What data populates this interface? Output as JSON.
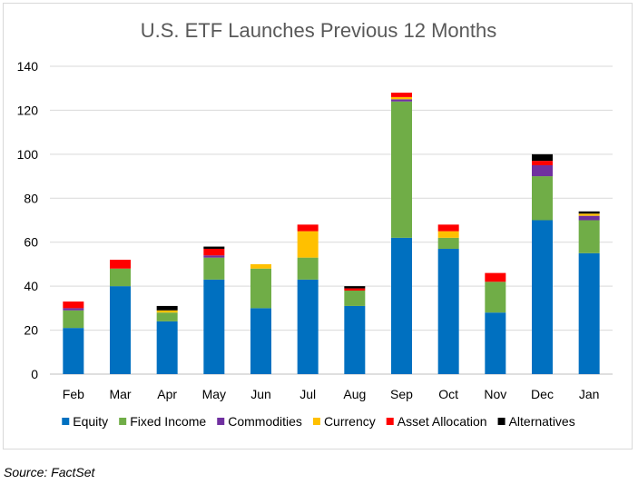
{
  "chart_data": {
    "type": "bar",
    "stacked": true,
    "title": "U.S. ETF Launches Previous 12 Months",
    "xlabel": "",
    "ylabel": "",
    "ylim": [
      0,
      140
    ],
    "yticks": [
      0,
      20,
      40,
      60,
      80,
      100,
      120,
      140
    ],
    "grid": true,
    "legend_position": "bottom",
    "categories": [
      "Feb",
      "Mar",
      "Apr",
      "May",
      "Jun",
      "Jul",
      "Aug",
      "Sep",
      "Oct",
      "Nov",
      "Dec",
      "Jan"
    ],
    "series": [
      {
        "name": "Equity",
        "color": "#0070C0",
        "values": [
          21,
          40,
          24,
          43,
          30,
          43,
          31,
          62,
          57,
          28,
          70,
          55
        ]
      },
      {
        "name": "Fixed Income",
        "color": "#70AD47",
        "values": [
          8,
          8,
          4,
          10,
          18,
          10,
          7,
          62,
          5,
          14,
          20,
          15
        ]
      },
      {
        "name": "Commodities",
        "color": "#7030A0",
        "values": [
          1,
          0,
          0,
          1,
          0,
          0,
          0,
          1,
          0,
          0,
          5,
          2
        ]
      },
      {
        "name": "Currency",
        "color": "#FFC000",
        "values": [
          0,
          0,
          1,
          0,
          2,
          12,
          0,
          1,
          3,
          0,
          0,
          1
        ]
      },
      {
        "name": "Asset Allocation",
        "color": "#FF0000",
        "values": [
          3,
          4,
          0,
          3,
          0,
          3,
          1,
          2,
          3,
          4,
          2,
          0
        ]
      },
      {
        "name": "Alternatives",
        "color": "#000000",
        "values": [
          0,
          0,
          2,
          1,
          0,
          0,
          1,
          0,
          0,
          0,
          3,
          1
        ]
      }
    ]
  },
  "source_note": "Source: FactSet"
}
